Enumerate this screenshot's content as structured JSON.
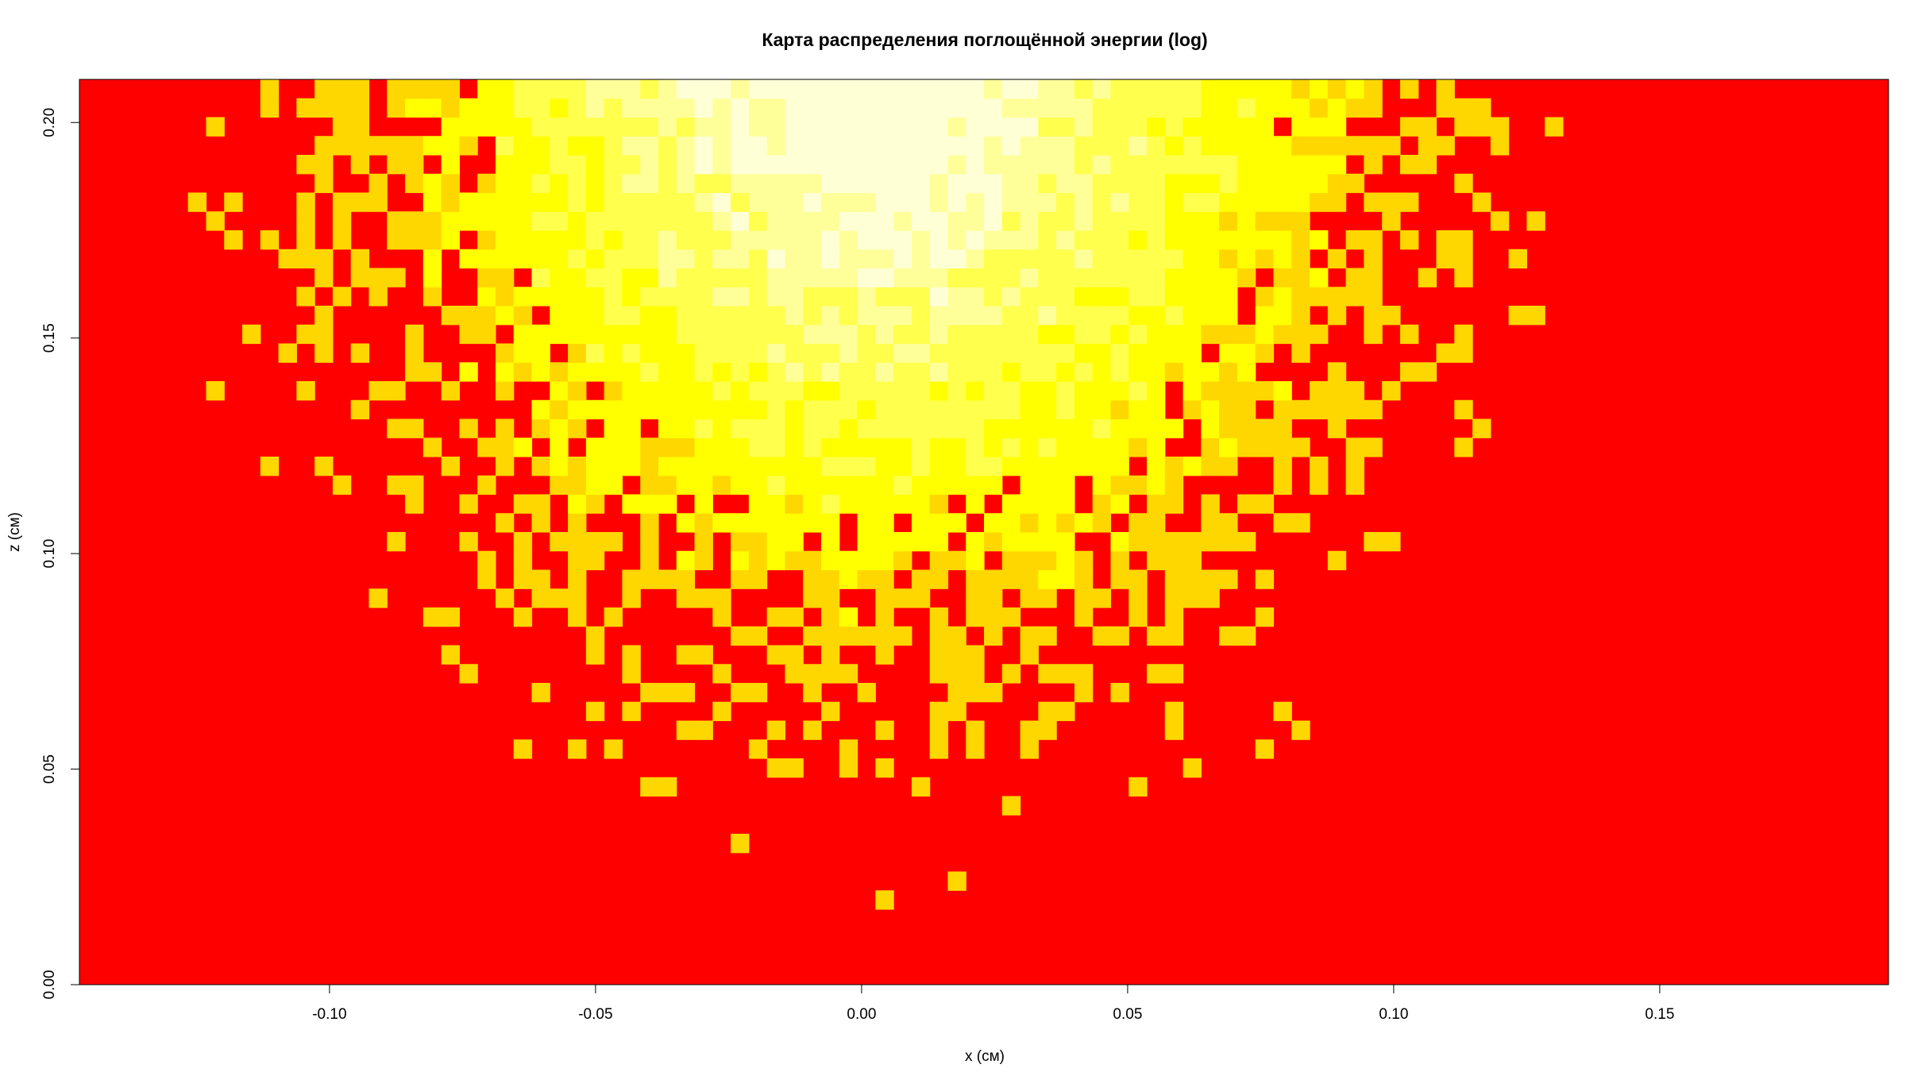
{
  "chart_data": {
    "type": "heatmap",
    "title": "Карта распределения поглощённой энергии (log)",
    "xlabel": "x (см)",
    "ylabel": "z (см)",
    "xlim": [
      -0.147,
      0.193
    ],
    "ylim": [
      0.0,
      0.21
    ],
    "x_ticks": [
      -0.1,
      -0.05,
      0.0,
      0.05,
      0.1,
      0.15
    ],
    "x_tick_labels": [
      "-0.10",
      "-0.05",
      "0.00",
      "0.05",
      "0.10",
      "0.15"
    ],
    "y_ticks": [
      0.0,
      0.05,
      0.1,
      0.15,
      0.2
    ],
    "y_tick_labels": [
      "0.00",
      "0.05",
      "0.10",
      "0.15",
      "0.20"
    ],
    "color_scale": [
      "#ff0000",
      "#ffd700",
      "#ffff00",
      "#ffff4d",
      "#ffff99",
      "#ffffd6"
    ],
    "scale": "log",
    "hotspot_center": [
      0.003,
      0.21
    ],
    "grid": false
  },
  "colors": {
    "background": "#ff0000",
    "frame": "#000000"
  }
}
